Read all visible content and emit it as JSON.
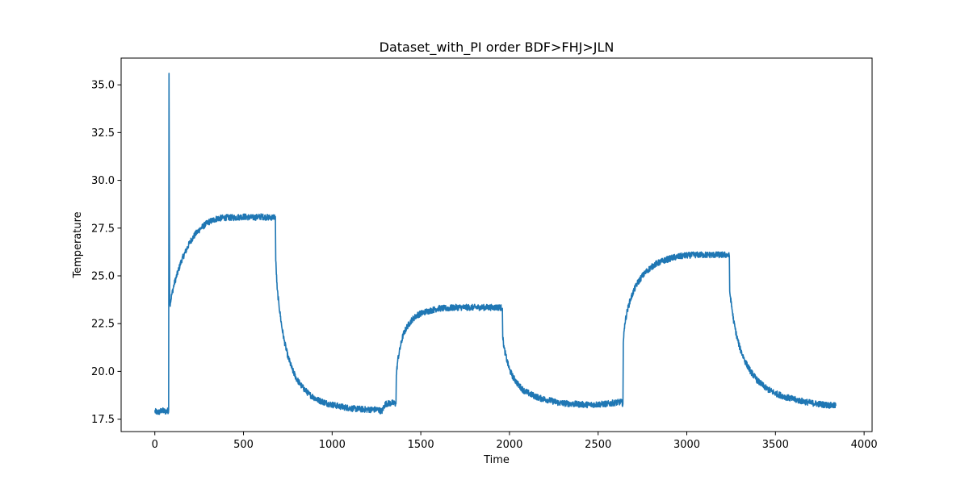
{
  "chart_data": {
    "type": "line",
    "title": "Dataset_with_PI order BDF>FHJ>JLN",
    "xlabel": "Time",
    "ylabel": "Temperature",
    "xlim": [
      -190,
      4045
    ],
    "ylim": [
      16.85,
      36.4
    ],
    "xticks": [
      0,
      500,
      1000,
      1500,
      2000,
      2500,
      3000,
      3500,
      4000
    ],
    "xtick_labels": [
      "0",
      "500",
      "1000",
      "1500",
      "2000",
      "2500",
      "3000",
      "3500",
      "4000"
    ],
    "yticks": [
      17.5,
      20.0,
      22.5,
      25.0,
      27.5,
      30.0,
      32.5,
      35.0
    ],
    "ytick_labels": [
      "17.5",
      "20.0",
      "22.5",
      "25.0",
      "27.5",
      "30.0",
      "32.5",
      "35.0"
    ],
    "grid": false,
    "series": [
      {
        "color": "#1f77b4",
        "x": [
          0,
          20,
          40,
          60,
          78,
          80,
          82,
          84,
          88,
          95,
          110,
          130,
          150,
          175,
          200,
          230,
          260,
          300,
          350,
          400,
          450,
          500,
          550,
          600,
          650,
          680,
          682,
          690,
          700,
          715,
          730,
          750,
          775,
          800,
          830,
          870,
          920,
          980,
          1050,
          1120,
          1200,
          1260,
          1280,
          1300,
          1340,
          1360,
          1362,
          1370,
          1385,
          1400,
          1420,
          1450,
          1480,
          1520,
          1560,
          1600,
          1650,
          1700,
          1750,
          1800,
          1850,
          1900,
          1950,
          1960,
          1962,
          1970,
          1985,
          2000,
          2020,
          2050,
          2080,
          2120,
          2170,
          2220,
          2280,
          2350,
          2450,
          2550,
          2630,
          2640,
          2642,
          2650,
          2665,
          2680,
          2700,
          2720,
          2750,
          2780,
          2820,
          2870,
          2920,
          2980,
          3050,
          3120,
          3180,
          3230,
          3240,
          3242,
          3250,
          3265,
          3280,
          3300,
          3330,
          3360,
          3400,
          3450,
          3500,
          3560,
          3620,
          3700,
          3780,
          3840
        ],
        "y": [
          17.9,
          17.85,
          17.95,
          17.9,
          17.95,
          35.6,
          28.0,
          23.5,
          23.6,
          24.0,
          24.6,
          25.2,
          25.8,
          26.3,
          26.8,
          27.2,
          27.5,
          27.8,
          28.0,
          28.05,
          28.05,
          28.1,
          28.05,
          28.1,
          28.05,
          28.1,
          25.8,
          24.3,
          23.5,
          22.4,
          21.6,
          20.8,
          20.1,
          19.6,
          19.2,
          18.8,
          18.5,
          18.3,
          18.15,
          18.05,
          18.0,
          18.0,
          17.9,
          18.3,
          18.35,
          18.3,
          19.8,
          20.6,
          21.3,
          21.9,
          22.3,
          22.7,
          22.95,
          23.1,
          23.2,
          23.3,
          23.3,
          23.35,
          23.35,
          23.35,
          23.35,
          23.35,
          23.35,
          23.3,
          21.8,
          21.2,
          20.6,
          20.1,
          19.7,
          19.3,
          19.0,
          18.8,
          18.6,
          18.5,
          18.35,
          18.3,
          18.25,
          18.3,
          18.4,
          18.3,
          21.5,
          22.5,
          23.2,
          23.7,
          24.2,
          24.6,
          25.0,
          25.3,
          25.6,
          25.8,
          25.95,
          26.05,
          26.1,
          26.1,
          26.1,
          26.1,
          26.05,
          24.2,
          23.6,
          22.6,
          21.9,
          21.2,
          20.5,
          20.0,
          19.5,
          19.1,
          18.85,
          18.65,
          18.5,
          18.35,
          18.25,
          18.2
        ]
      }
    ]
  }
}
